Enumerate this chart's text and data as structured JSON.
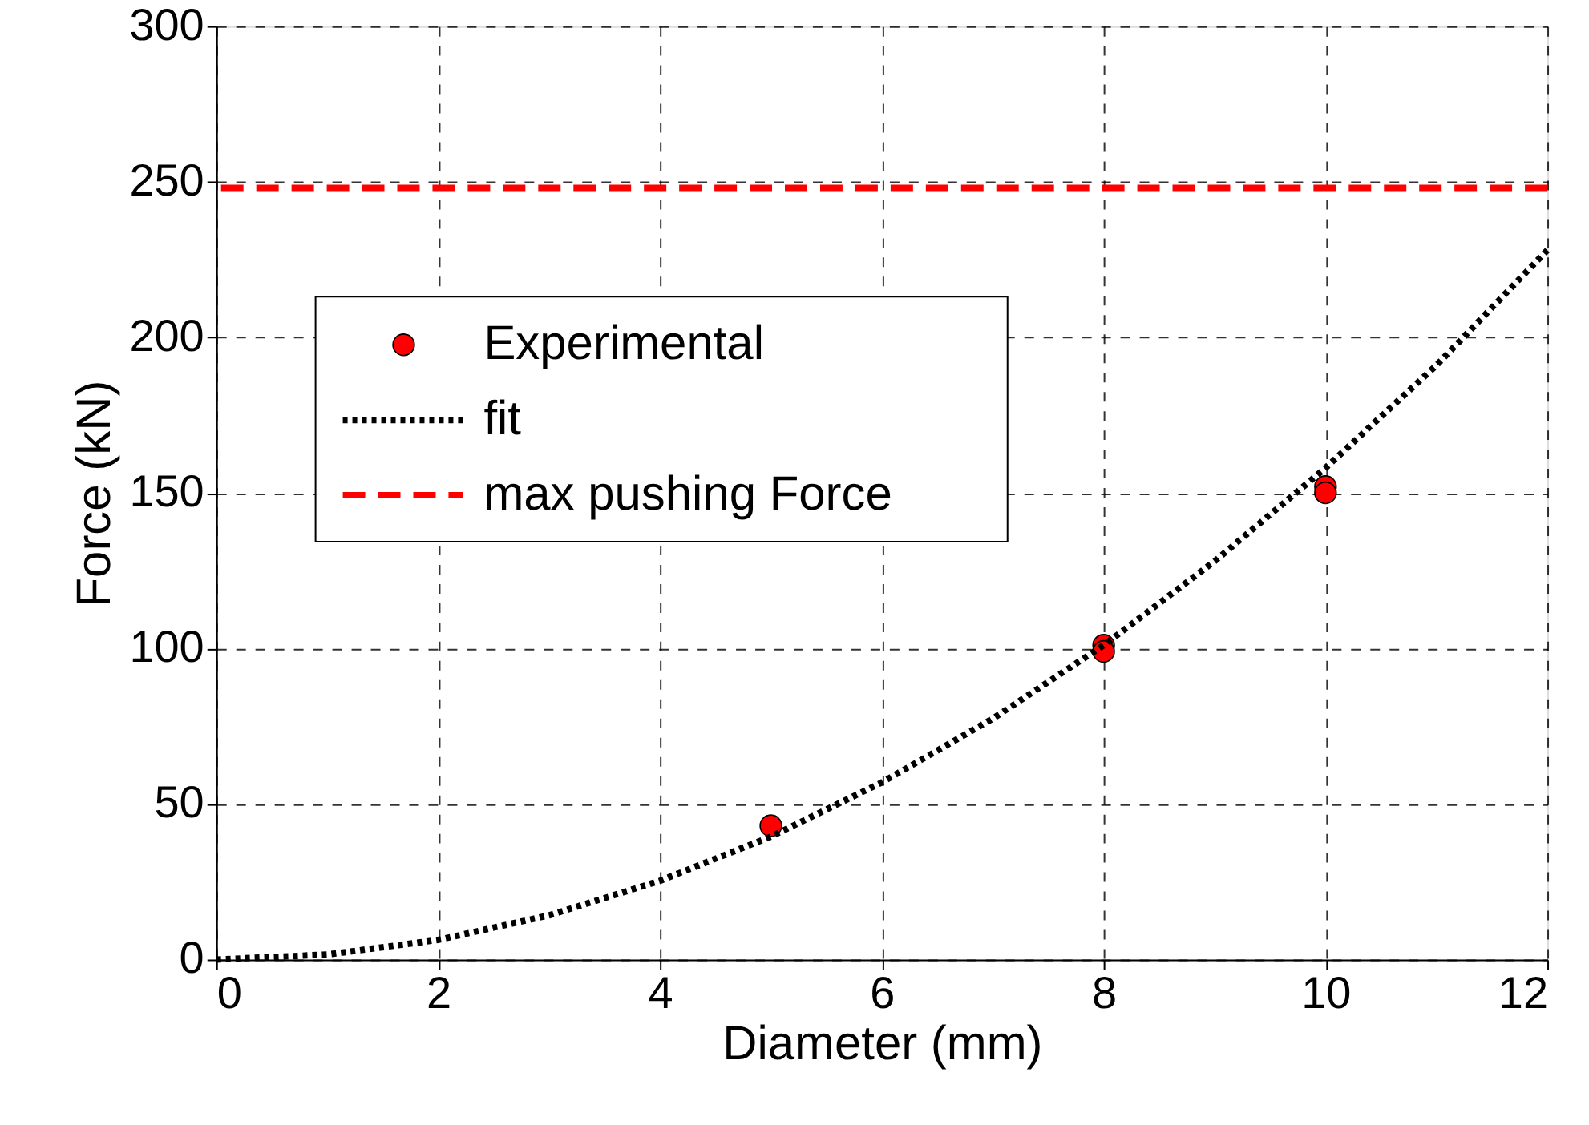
{
  "chart_data": {
    "type": "scatter",
    "xlabel": "Diameter (mm)",
    "ylabel": "Force (kN)",
    "xlim": [
      0,
      12
    ],
    "xticks": [
      0,
      2,
      4,
      6,
      8,
      10,
      12
    ],
    "ylim": [
      0,
      300
    ],
    "yticks": [
      0,
      50,
      100,
      150,
      200,
      250,
      300
    ],
    "grid": true,
    "legend": "left",
    "series": [
      {
        "name": "Experimental",
        "type": "scatter",
        "marker": "circle",
        "color": "#ff0000",
        "x": [
          5,
          8,
          8,
          10,
          10
        ],
        "values": [
          43,
          101,
          99,
          152,
          150
        ]
      },
      {
        "name": "fit",
        "type": "line",
        "line_style": "dotted",
        "color": "#000000",
        "x": [
          0,
          1,
          2,
          3,
          4,
          5,
          6,
          7,
          8,
          9,
          10,
          11,
          12
        ],
        "values": [
          0,
          1.6,
          6.3,
          14.2,
          25.3,
          39.5,
          56.9,
          77.4,
          101,
          128,
          158,
          191,
          228
        ]
      }
    ],
    "ref_lines": [
      {
        "axis": "y",
        "value": 248,
        "label": "max pushing Force",
        "color": "#ff0000",
        "line_style": "dashed"
      }
    ]
  }
}
